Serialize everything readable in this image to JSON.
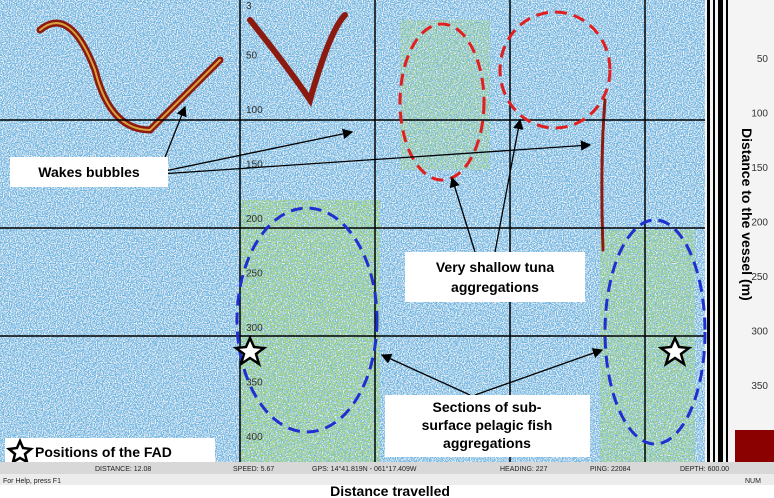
{
  "echogram": {
    "depth_labels": [
      "3",
      "50",
      "100",
      "150",
      "200",
      "250",
      "300",
      "350",
      "400"
    ]
  },
  "range_scale": {
    "labels": [
      "50",
      "100",
      "150",
      "200",
      "250",
      "300",
      "350"
    ],
    "title": "Distance to the vessel (m)"
  },
  "annotations": {
    "wakes": "Wakes bubbles",
    "tuna": [
      "Very shallow tuna",
      "aggregations"
    ],
    "pelagic": [
      "Sections of sub-",
      "surface pelagic fish",
      "aggregations"
    ],
    "fad": "Positions of the FAD"
  },
  "status_bar": {
    "distance": "DISTANCE: 12.08",
    "speed": "SPEED: 5.67",
    "gps": "GPS: 14°41.819N - 061°17.409W",
    "heading": "HEADING: 227",
    "ping": "PING: 22084",
    "depth": "DEPTH: 600.00",
    "help": "For Help, press F1",
    "num": "NUM"
  },
  "x_axis_title": "Distance travelled"
}
